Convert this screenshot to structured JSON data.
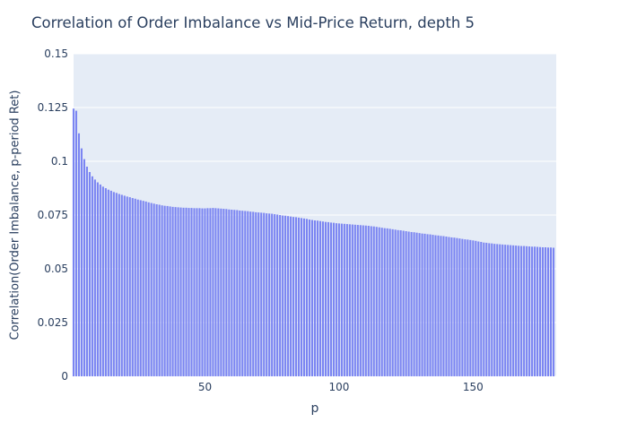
{
  "colors": {
    "page_background": "#ffffff",
    "plot_background": "#e5ecf6",
    "grid": "#ffffff",
    "bar": "#7b85f2",
    "text": "#2a3f5f"
  },
  "chart_data": {
    "type": "bar",
    "title": "Correlation of Order Imbalance vs Mid-Price Return, depth 5",
    "xlabel": "p",
    "ylabel": "Correlation(Order Imbalance, p-period Ret)",
    "x_start": 1,
    "xlim": [
      1,
      181
    ],
    "ylim": [
      0,
      0.15
    ],
    "grid": true,
    "legend_visible": false,
    "x_ticks": [
      50,
      100,
      150
    ],
    "x_tick_labels": [
      "50",
      "100",
      "150"
    ],
    "y_ticks": [
      0,
      0.025,
      0.05,
      0.075,
      0.1,
      0.125,
      0.15
    ],
    "y_tick_labels": [
      "0",
      "0.025",
      "0.05",
      "0.075",
      "0.1",
      "0.125",
      "0.15"
    ],
    "values": [
      0.1245,
      0.1235,
      0.113,
      0.106,
      0.101,
      0.0975,
      0.095,
      0.093,
      0.0915,
      0.0902,
      0.0892,
      0.0882,
      0.0875,
      0.0868,
      0.0863,
      0.0857,
      0.0853,
      0.0848,
      0.0844,
      0.084,
      0.0836,
      0.0833,
      0.0829,
      0.0826,
      0.0822,
      0.0819,
      0.0816,
      0.0813,
      0.0809,
      0.0806,
      0.0803,
      0.08,
      0.0798,
      0.0795,
      0.0793,
      0.0792,
      0.079,
      0.0788,
      0.0787,
      0.0786,
      0.0785,
      0.0784,
      0.0784,
      0.0783,
      0.0783,
      0.0782,
      0.0782,
      0.0782,
      0.0781,
      0.0781,
      0.0782,
      0.0782,
      0.0783,
      0.0782,
      0.0781,
      0.078,
      0.0779,
      0.0778,
      0.0776,
      0.0775,
      0.0774,
      0.0773,
      0.0771,
      0.077,
      0.0769,
      0.0768,
      0.0766,
      0.0765,
      0.0763,
      0.0762,
      0.0761,
      0.076,
      0.0758,
      0.0757,
      0.0756,
      0.0754,
      0.0752,
      0.075,
      0.0748,
      0.0747,
      0.0745,
      0.0743,
      0.0741,
      0.074,
      0.0738,
      0.0736,
      0.0734,
      0.0732,
      0.0729,
      0.0727,
      0.0725,
      0.0724,
      0.0722,
      0.072,
      0.0718,
      0.0717,
      0.0715,
      0.0714,
      0.0712,
      0.0711,
      0.071,
      0.0709,
      0.0708,
      0.0707,
      0.0706,
      0.0705,
      0.0704,
      0.0703,
      0.0702,
      0.0701,
      0.07,
      0.0698,
      0.0697,
      0.0695,
      0.0693,
      0.0691,
      0.0689,
      0.0688,
      0.0686,
      0.0684,
      0.0682,
      0.068,
      0.0679,
      0.0677,
      0.0675,
      0.0673,
      0.0671,
      0.067,
      0.0668,
      0.0666,
      0.0664,
      0.0663,
      0.0661,
      0.066,
      0.0658,
      0.0656,
      0.0655,
      0.0653,
      0.0652,
      0.065,
      0.0648,
      0.0646,
      0.0645,
      0.0643,
      0.0641,
      0.0639,
      0.0637,
      0.0636,
      0.0634,
      0.0632,
      0.063,
      0.0627,
      0.0625,
      0.0622,
      0.0621,
      0.0619,
      0.0618,
      0.0616,
      0.0615,
      0.0614,
      0.0613,
      0.0612,
      0.0611,
      0.061,
      0.0609,
      0.0608,
      0.0607,
      0.0606,
      0.0606,
      0.0605,
      0.0604,
      0.0603,
      0.0603,
      0.0602,
      0.0601,
      0.06,
      0.06,
      0.0599,
      0.0599,
      0.0598
    ]
  }
}
